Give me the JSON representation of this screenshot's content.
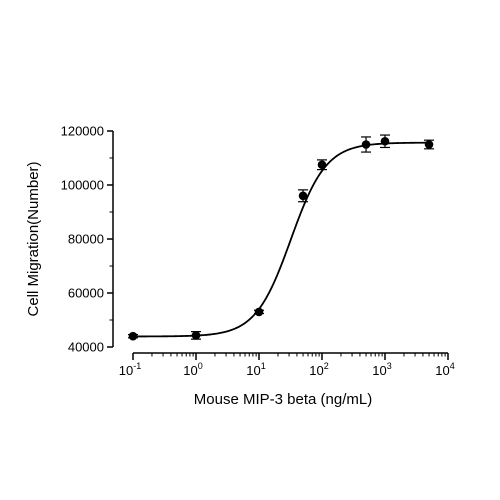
{
  "chart_data": {
    "type": "scatter",
    "title": "",
    "xlabel": "Mouse MIP-3 beta (ng/mL)",
    "ylabel": "Cell Migration(Number)",
    "x_scale": "log10",
    "xlim": [
      0.1,
      10000
    ],
    "ylim": [
      40000,
      120000
    ],
    "x_ticks": [
      {
        "value": 0.1,
        "base": "10",
        "exp": "-1"
      },
      {
        "value": 1,
        "base": "10",
        "exp": "0"
      },
      {
        "value": 10,
        "base": "10",
        "exp": "1"
      },
      {
        "value": 100,
        "base": "10",
        "exp": "2"
      },
      {
        "value": 1000,
        "base": "10",
        "exp": "3"
      },
      {
        "value": 10000,
        "base": "10",
        "exp": "4"
      }
    ],
    "y_ticks": [
      {
        "value": 40000,
        "label": "40000"
      },
      {
        "value": 60000,
        "label": "60000"
      },
      {
        "value": 80000,
        "label": "80000"
      },
      {
        "value": 100000,
        "label": "100000"
      },
      {
        "value": 120000,
        "label": "120000"
      }
    ],
    "points": [
      {
        "x": 0.1,
        "y": 44000,
        "err": 600
      },
      {
        "x": 1,
        "y": 44300,
        "err": 1400
      },
      {
        "x": 10,
        "y": 53000,
        "err": 600
      },
      {
        "x": 50,
        "y": 96000,
        "err": 2200
      },
      {
        "x": 100,
        "y": 107500,
        "err": 1800
      },
      {
        "x": 500,
        "y": 115000,
        "err": 2800
      },
      {
        "x": 1000,
        "y": 116200,
        "err": 2300
      },
      {
        "x": 5000,
        "y": 115000,
        "err": 1600
      }
    ],
    "fit": {
      "model": "4PL",
      "bottom": 43900,
      "top": 115700,
      "ec50": 32,
      "hill": 1.55
    },
    "grid": false,
    "legend": "none",
    "color": "#000000"
  }
}
